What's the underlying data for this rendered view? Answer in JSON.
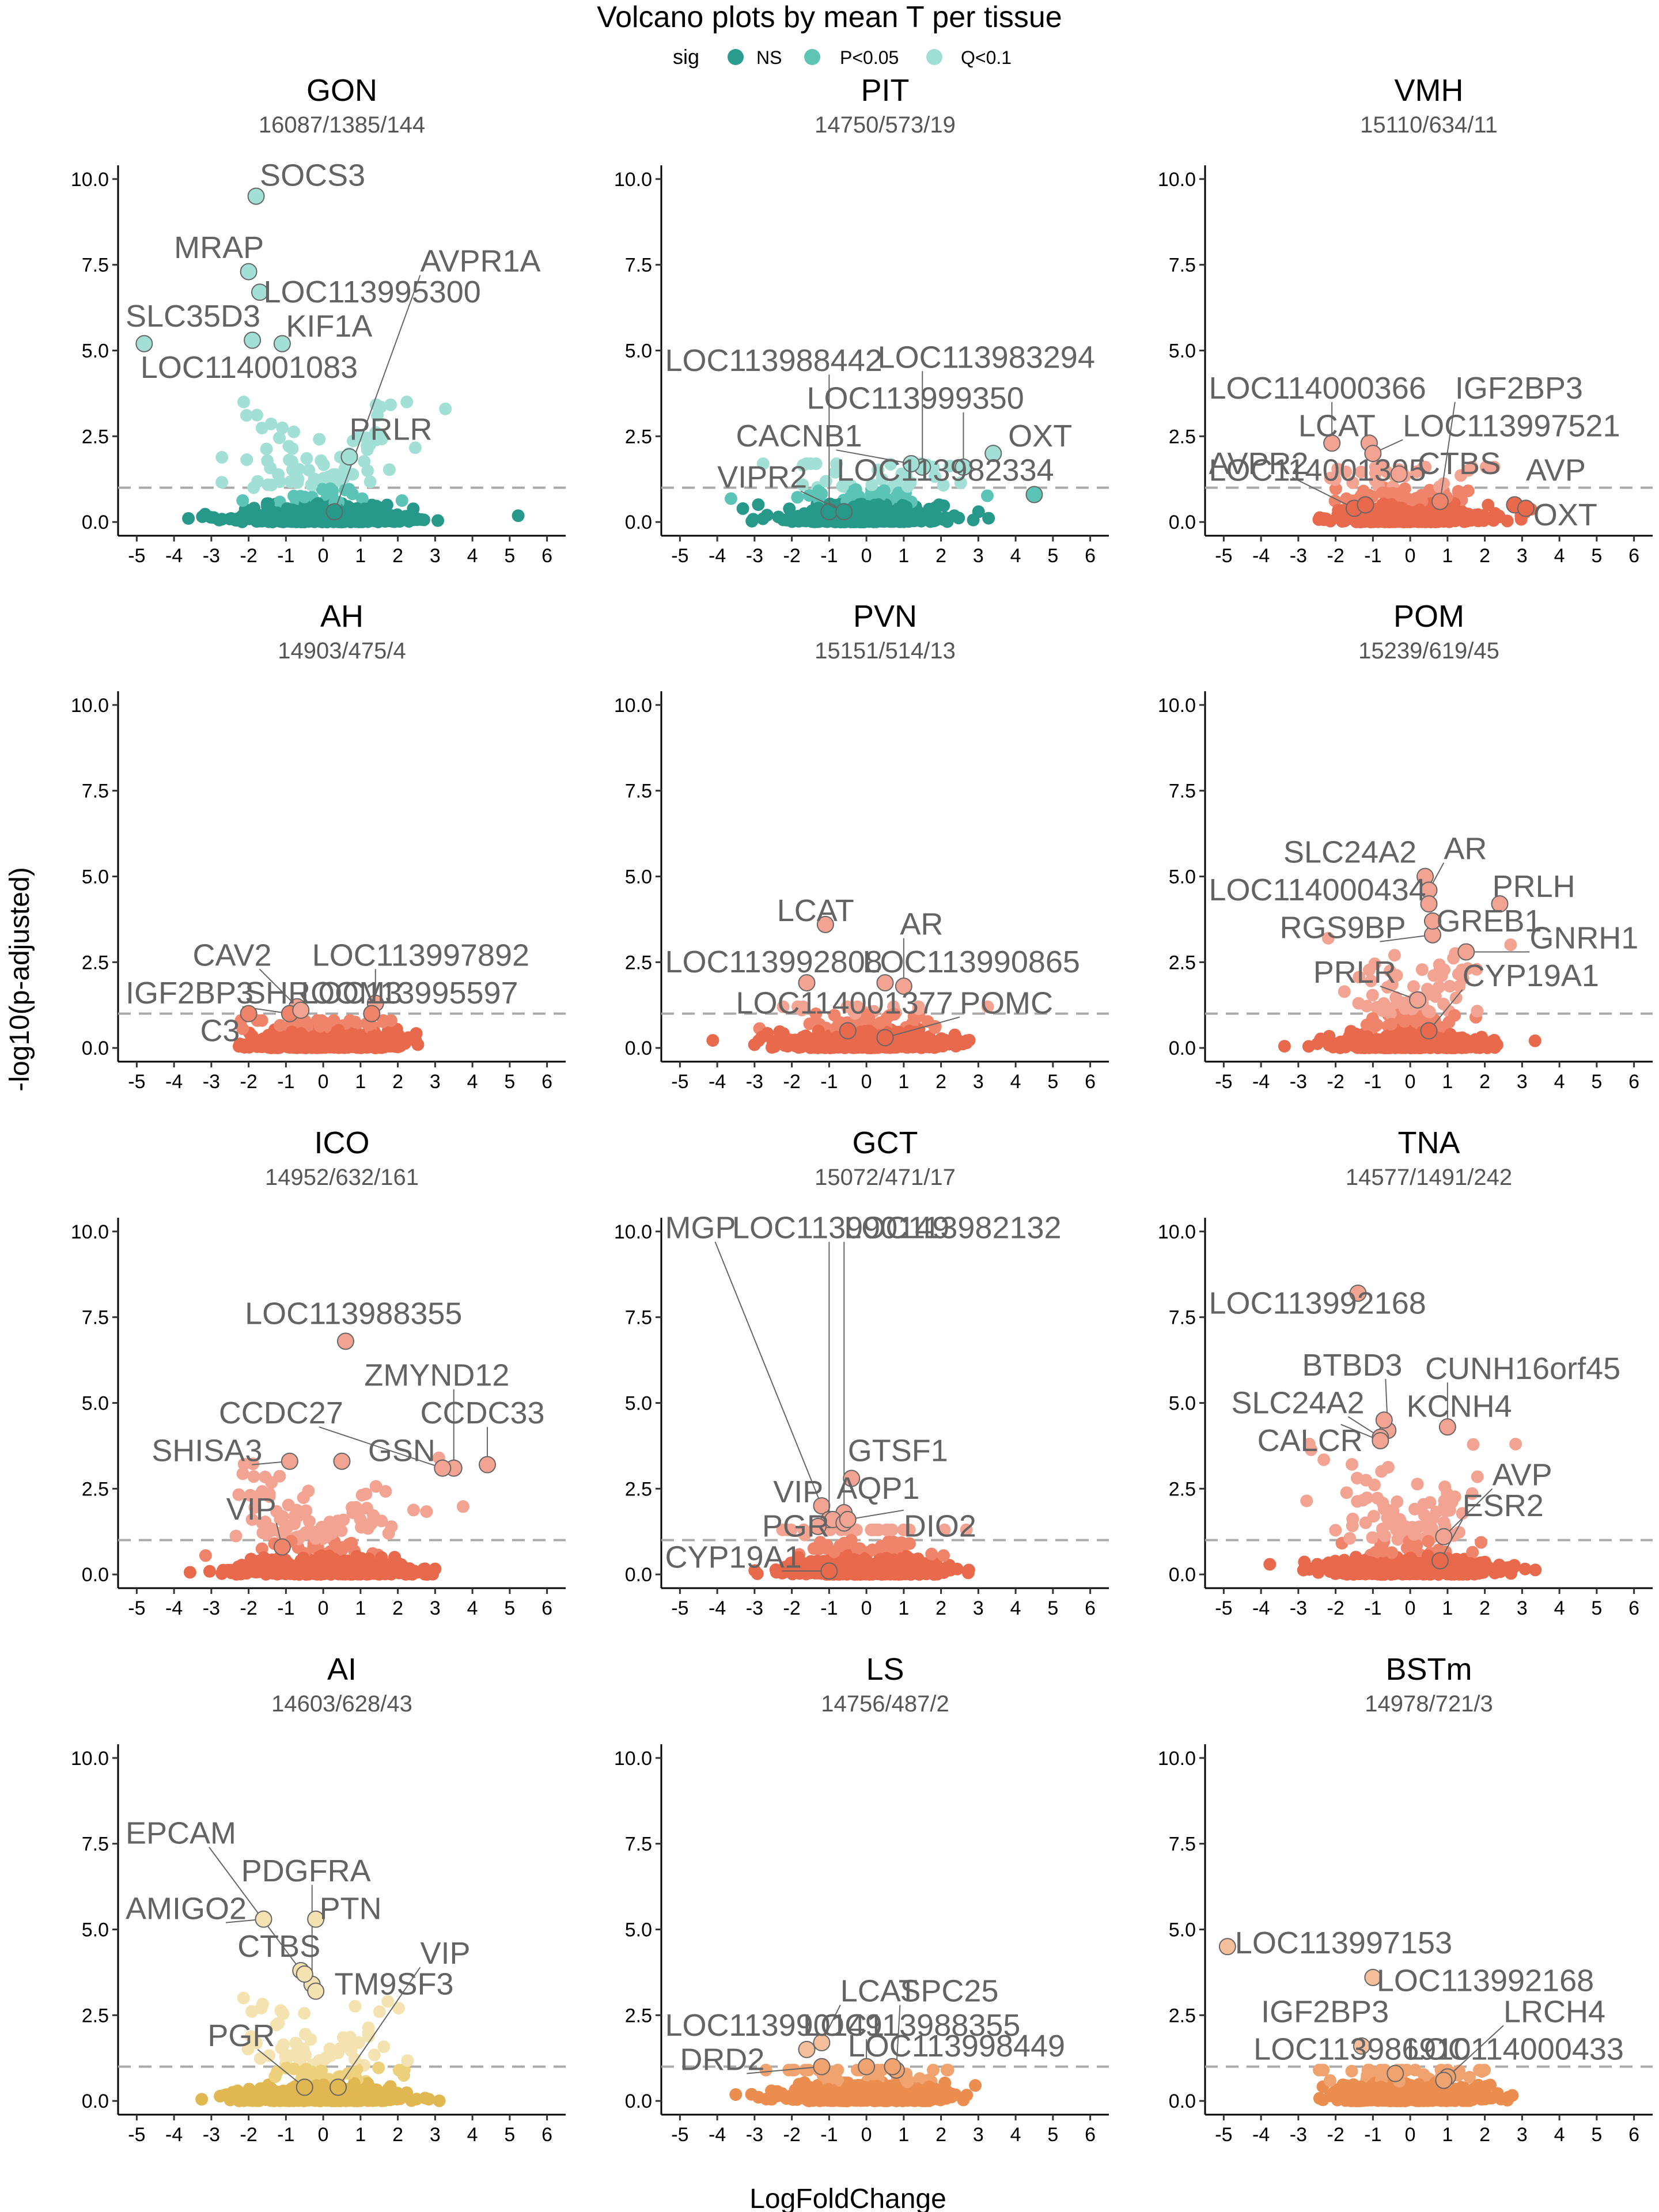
{
  "title": "Volcano plots by mean T per tissue",
  "legend": {
    "title": "sig",
    "entries": [
      {
        "label": "NS",
        "color": "#2a9d8f"
      },
      {
        "label": "P<0.05",
        "color": "#5ec4b6"
      },
      {
        "label": "Q<0.1",
        "color": "#9fded4"
      }
    ]
  },
  "xlabel": "LogFoldChange",
  "ylabel": "-log10(p-adjusted)",
  "chart_data": {
    "type": "scatter",
    "xlim": [
      -5.5,
      6.5
    ],
    "ylim": [
      -0.4,
      10.4
    ],
    "xticks": [
      -5,
      -4,
      -3,
      -2,
      -1,
      0,
      1,
      2,
      3,
      4,
      5,
      6
    ],
    "yticks": [
      "0.0",
      "2.5",
      "5.0",
      "7.5",
      "10.0"
    ],
    "threshold_y": 1,
    "panels": [
      {
        "name": "GON",
        "subtitle": "16087/1385/144",
        "palette": [
          "#27998b",
          "#5cc4b6",
          "#a2dfd5"
        ],
        "spread": 2.0,
        "max_y": 3.5,
        "genes": [
          {
            "label": "SOCS3",
            "x": -1.8,
            "y": 9.5,
            "lx": -1.7,
            "ly": 9.8
          },
          {
            "label": "MRAP",
            "x": -2.0,
            "y": 7.3,
            "lx": -4.0,
            "ly": 7.7
          },
          {
            "label": "LOC113995300",
            "x": -1.7,
            "y": 6.7,
            "lx": -1.6,
            "ly": 6.4
          },
          {
            "label": "AVPR1A",
            "x": 0.3,
            "y": 0.3,
            "lx": 2.6,
            "ly": 7.3
          },
          {
            "label": "SLC35D3",
            "x": -4.8,
            "y": 5.2,
            "lx": -5.3,
            "ly": 5.7
          },
          {
            "label": "KIF1A",
            "x": -1.1,
            "y": 5.2,
            "lx": -1.0,
            "ly": 5.4
          },
          {
            "label": "LOC114001083",
            "x": -1.9,
            "y": 5.3,
            "lx": -4.9,
            "ly": 4.2
          },
          {
            "label": "PRLR",
            "x": 0.7,
            "y": 1.9,
            "lx": 0.7,
            "ly": 2.4
          }
        ]
      },
      {
        "name": "PIT",
        "subtitle": "14750/573/19",
        "palette": [
          "#27998b",
          "#5cc4b6",
          "#a2dfd5"
        ],
        "spread": 1.8,
        "max_y": 1.7,
        "genes": [
          {
            "label": "LOC113988442",
            "x": -1.0,
            "y": 0.3,
            "lx": -5.4,
            "ly": 4.4
          },
          {
            "label": "LOC113983294",
            "x": 1.5,
            "y": 1.6,
            "lx": 0.3,
            "ly": 4.5
          },
          {
            "label": "LOC113999350",
            "x": 2.6,
            "y": 1.6,
            "lx": -1.6,
            "ly": 3.3
          },
          {
            "label": "CACNB1",
            "x": 1.2,
            "y": 1.7,
            "lx": -3.5,
            "ly": 2.2
          },
          {
            "label": "OXT",
            "x": 3.4,
            "y": 2.0,
            "lx": 3.8,
            "ly": 2.2
          },
          {
            "label": "VIPR2",
            "x": -0.6,
            "y": 0.3,
            "lx": -4.0,
            "ly": 1.0
          },
          {
            "label": "LOC113982334",
            "x": 4.5,
            "y": 0.8,
            "lx": -0.8,
            "ly": 1.2
          }
        ]
      },
      {
        "name": "VMH",
        "subtitle": "15110/634/11",
        "palette": [
          "#e8694c",
          "#f0846b",
          "#f3a391"
        ],
        "spread": 1.7,
        "max_y": 1.6,
        "genes": [
          {
            "label": "LOC114000366",
            "x": -2.1,
            "y": 2.3,
            "lx": -5.4,
            "ly": 3.6
          },
          {
            "label": "IGF2BP3",
            "x": 0.8,
            "y": 0.6,
            "lx": 1.2,
            "ly": 3.6
          },
          {
            "label": "LCAT",
            "x": -1.1,
            "y": 2.3,
            "lx": -3.0,
            "ly": 2.5
          },
          {
            "label": "LOC113997521",
            "x": -1.0,
            "y": 2.0,
            "lx": -0.2,
            "ly": 2.5
          },
          {
            "label": "AVPR2",
            "x": -1.5,
            "y": 0.4,
            "lx": -5.4,
            "ly": 1.4
          },
          {
            "label": "LOC114001395",
            "x": -1.2,
            "y": 0.5,
            "lx": -5.4,
            "ly": 1.2
          },
          {
            "label": "CTBS",
            "x": -0.3,
            "y": 1.4,
            "lx": 0.2,
            "ly": 1.4
          },
          {
            "label": "AVP",
            "x": 2.8,
            "y": 0.5,
            "lx": 3.1,
            "ly": 1.2
          },
          {
            "label": "OXT",
            "x": 3.1,
            "y": 0.4,
            "lx": 3.3,
            "ly": -0.1
          }
        ]
      },
      {
        "name": "AH",
        "subtitle": "14903/475/4",
        "palette": [
          "#e8694c",
          "#f0846b",
          "#f3a391"
        ],
        "spread": 1.7,
        "max_y": 0.8,
        "genes": [
          {
            "label": "CAV2",
            "x": -0.7,
            "y": 1.2,
            "lx": -3.5,
            "ly": 2.4
          },
          {
            "label": "LOC113997892",
            "x": 1.4,
            "y": 1.3,
            "lx": -0.3,
            "ly": 2.4
          },
          {
            "label": "IGF2BP3",
            "x": -0.9,
            "y": 1.0,
            "lx": -5.3,
            "ly": 1.3
          },
          {
            "label": "SHROOM3",
            "x": -0.6,
            "y": 1.1,
            "lx": -2.1,
            "ly": 1.3
          },
          {
            "label": "LOC113995597",
            "x": 1.3,
            "y": 1.0,
            "lx": -0.6,
            "ly": 1.3
          },
          {
            "label": "C3",
            "x": -2.0,
            "y": 1.0,
            "lx": -3.3,
            "ly": 0.2
          }
        ]
      },
      {
        "name": "PVN",
        "subtitle": "15151/514/13",
        "palette": [
          "#e8694c",
          "#f0846b",
          "#f3a391"
        ],
        "spread": 1.8,
        "max_y": 1.2,
        "genes": [
          {
            "label": "LCAT",
            "x": -1.1,
            "y": 3.6,
            "lx": -2.4,
            "ly": 3.7
          },
          {
            "label": "AR",
            "x": 1.0,
            "y": 1.8,
            "lx": 0.9,
            "ly": 3.3
          },
          {
            "label": "LOC113992808",
            "x": -1.6,
            "y": 1.9,
            "lx": -5.4,
            "ly": 2.2
          },
          {
            "label": "LOC113990865",
            "x": 0.5,
            "y": 1.9,
            "lx": -0.1,
            "ly": 2.2
          },
          {
            "label": "LOC114001377",
            "x": -0.5,
            "y": 0.5,
            "lx": -3.5,
            "ly": 1.0
          },
          {
            "label": "POMC",
            "x": 0.5,
            "y": 0.3,
            "lx": 2.5,
            "ly": 1.0
          }
        ]
      },
      {
        "name": "POM",
        "subtitle": "15239/619/45",
        "palette": [
          "#e8694c",
          "#f0846b",
          "#f3a391"
        ],
        "spread": 1.7,
        "max_y": 3.2,
        "genes": [
          {
            "label": "SLC24A2",
            "x": 0.4,
            "y": 5.0,
            "lx": -3.4,
            "ly": 5.4
          },
          {
            "label": "AR",
            "x": 0.5,
            "y": 4.6,
            "lx": 0.9,
            "ly": 5.5
          },
          {
            "label": "LOC114000434",
            "x": 0.5,
            "y": 4.2,
            "lx": -5.4,
            "ly": 4.3
          },
          {
            "label": "PRLH",
            "x": 2.4,
            "y": 4.2,
            "lx": 2.2,
            "ly": 4.4
          },
          {
            "label": "RGS9BP",
            "x": 0.6,
            "y": 3.3,
            "lx": -3.5,
            "ly": 3.2
          },
          {
            "label": "GREB1",
            "x": 0.6,
            "y": 3.7,
            "lx": 0.7,
            "ly": 3.4
          },
          {
            "label": "GNRH1",
            "x": 1.5,
            "y": 2.8,
            "lx": 3.2,
            "ly": 2.9
          },
          {
            "label": "PRLR",
            "x": 0.2,
            "y": 1.4,
            "lx": -2.6,
            "ly": 1.9
          },
          {
            "label": "CYP19A1",
            "x": 0.5,
            "y": 0.5,
            "lx": 1.4,
            "ly": 1.8
          }
        ]
      },
      {
        "name": "ICO",
        "subtitle": "14952/632/161",
        "palette": [
          "#e8694c",
          "#f0846b",
          "#f3a391"
        ],
        "spread": 2.2,
        "max_y": 3.4,
        "genes": [
          {
            "label": "LOC113988355",
            "x": 0.6,
            "y": 6.8,
            "lx": -2.1,
            "ly": 7.3
          },
          {
            "label": "ZMYND12",
            "x": 3.5,
            "y": 3.1,
            "lx": 1.1,
            "ly": 5.5
          },
          {
            "label": "CCDC27",
            "x": 3.2,
            "y": 3.1,
            "lx": -2.8,
            "ly": 4.4
          },
          {
            "label": "CCDC33",
            "x": 4.4,
            "y": 3.2,
            "lx": 2.6,
            "ly": 4.4
          },
          {
            "label": "SHISA3",
            "x": -0.9,
            "y": 3.3,
            "lx": -4.6,
            "ly": 3.3
          },
          {
            "label": "GSN",
            "x": 0.5,
            "y": 3.3,
            "lx": 1.2,
            "ly": 3.3
          },
          {
            "label": "VIP",
            "x": -1.1,
            "y": 0.8,
            "lx": -2.6,
            "ly": 1.6
          }
        ]
      },
      {
        "name": "GCT",
        "subtitle": "15072/471/17",
        "palette": [
          "#e8694c",
          "#f0846b",
          "#f3a391"
        ],
        "spread": 1.8,
        "max_y": 1.3,
        "genes": [
          {
            "label": "MGP",
            "x": -1.2,
            "y": 2.0,
            "lx": -5.4,
            "ly": 9.8
          },
          {
            "label": "LOC113990149",
            "x": -1.0,
            "y": 1.6,
            "lx": -3.6,
            "ly": 9.8
          },
          {
            "label": "LOC113982132",
            "x": -0.6,
            "y": 1.8,
            "lx": -0.6,
            "ly": 9.8
          },
          {
            "label": "GTSF1",
            "x": -0.4,
            "y": 2.8,
            "lx": -0.5,
            "ly": 3.3
          },
          {
            "label": "VIP",
            "x": -0.9,
            "y": 1.6,
            "lx": -2.5,
            "ly": 2.1
          },
          {
            "label": "AQP1",
            "x": -0.6,
            "y": 1.5,
            "lx": -0.8,
            "ly": 2.2
          },
          {
            "label": "PGR",
            "x": -1.3,
            "y": 1.4,
            "lx": -2.8,
            "ly": 1.1
          },
          {
            "label": "DIO2",
            "x": -0.5,
            "y": 1.6,
            "lx": 1.0,
            "ly": 1.1
          },
          {
            "label": "CYP19A1",
            "x": -1.0,
            "y": 0.1,
            "lx": -5.4,
            "ly": 0.2
          }
        ]
      },
      {
        "name": "TNA",
        "subtitle": "14577/1491/242",
        "palette": [
          "#e8694c",
          "#f0846b",
          "#f3a391"
        ],
        "spread": 2.0,
        "max_y": 3.8,
        "genes": [
          {
            "label": "LOC113992168",
            "x": -1.4,
            "y": 8.2,
            "lx": -5.4,
            "ly": 7.6
          },
          {
            "label": "BTBD3",
            "x": -0.6,
            "y": 4.2,
            "lx": -2.9,
            "ly": 5.8
          },
          {
            "label": "CUNH16orf45",
            "x": 1.0,
            "y": 4.3,
            "lx": 0.4,
            "ly": 5.7
          },
          {
            "label": "SLC24A2",
            "x": -0.8,
            "y": 4.0,
            "lx": -4.8,
            "ly": 4.7
          },
          {
            "label": "KCNH4",
            "x": -0.7,
            "y": 4.5,
            "lx": -0.1,
            "ly": 4.6
          },
          {
            "label": "CALCR",
            "x": -0.8,
            "y": 3.9,
            "lx": -4.1,
            "ly": 3.6
          },
          {
            "label": "AVP",
            "x": 0.9,
            "y": 1.1,
            "lx": 2.2,
            "ly": 2.6
          },
          {
            "label": "ESR2",
            "x": 0.8,
            "y": 0.4,
            "lx": 1.4,
            "ly": 1.7
          }
        ]
      },
      {
        "name": "AI",
        "subtitle": "14603/628/43",
        "palette": [
          "#e0b750",
          "#ecd07b",
          "#f4e3b1"
        ],
        "spread": 1.9,
        "max_y": 3.0,
        "genes": [
          {
            "label": "EPCAM",
            "x": -0.6,
            "y": 3.8,
            "lx": -5.3,
            "ly": 7.5
          },
          {
            "label": "PDGFRA",
            "x": -0.3,
            "y": 3.4,
            "lx": -2.2,
            "ly": 6.4
          },
          {
            "label": "AMIGO2",
            "x": -1.6,
            "y": 5.3,
            "lx": -5.3,
            "ly": 5.3
          },
          {
            "label": "PTN",
            "x": -0.2,
            "y": 5.3,
            "lx": -0.1,
            "ly": 5.3
          },
          {
            "label": "CTBS",
            "x": -0.5,
            "y": 3.7,
            "lx": -2.3,
            "ly": 4.2
          },
          {
            "label": "TM9SF3",
            "x": -0.2,
            "y": 3.2,
            "lx": 0.3,
            "ly": 3.1
          },
          {
            "label": "VIP",
            "x": 0.4,
            "y": 0.4,
            "lx": 2.6,
            "ly": 4.0
          },
          {
            "label": "PGR",
            "x": -0.5,
            "y": 0.4,
            "lx": -3.1,
            "ly": 1.6
          }
        ]
      },
      {
        "name": "LS",
        "subtitle": "14756/487/2",
        "palette": [
          "#ea8d4e",
          "#f0a36f",
          "#f5bf9b"
        ],
        "spread": 1.8,
        "max_y": 0.9,
        "genes": [
          {
            "label": "LCAT",
            "x": -1.2,
            "y": 1.7,
            "lx": -0.7,
            "ly": 2.9
          },
          {
            "label": "SPC25",
            "x": 0.8,
            "y": 0.9,
            "lx": 0.9,
            "ly": 2.9
          },
          {
            "label": "LOC113990149",
            "x": -1.6,
            "y": 1.5,
            "lx": -5.4,
            "ly": 1.9
          },
          {
            "label": "LOC113988355",
            "x": 0.0,
            "y": 1.0,
            "lx": -1.7,
            "ly": 1.9
          },
          {
            "label": "DRD2",
            "x": -1.2,
            "y": 1.0,
            "lx": -5.0,
            "ly": 0.9
          },
          {
            "label": "LOC113998449",
            "x": 0.7,
            "y": 1.0,
            "lx": -0.5,
            "ly": 1.3
          }
        ]
      },
      {
        "name": "BSTm",
        "subtitle": "14978/721/3",
        "palette": [
          "#ea8d4e",
          "#f0a36f",
          "#f5bf9b"
        ],
        "spread": 1.8,
        "max_y": 0.9,
        "genes": [
          {
            "label": "LOC113997153",
            "x": -4.9,
            "y": 4.5,
            "lx": -4.7,
            "ly": 4.3
          },
          {
            "label": "LOC113992168",
            "x": -1.0,
            "y": 3.6,
            "lx": -0.9,
            "ly": 3.2
          },
          {
            "label": "IGF2BP3",
            "x": -1.3,
            "y": 1.6,
            "lx": -4.0,
            "ly": 2.3
          },
          {
            "label": "LRCH4",
            "x": 1.0,
            "y": 0.7,
            "lx": 2.5,
            "ly": 2.3
          },
          {
            "label": "LOC113986910",
            "x": -0.4,
            "y": 0.8,
            "lx": -4.2,
            "ly": 1.2
          },
          {
            "label": "LOC114000433",
            "x": 0.9,
            "y": 0.6,
            "lx": -0.1,
            "ly": 1.2
          }
        ]
      }
    ]
  }
}
